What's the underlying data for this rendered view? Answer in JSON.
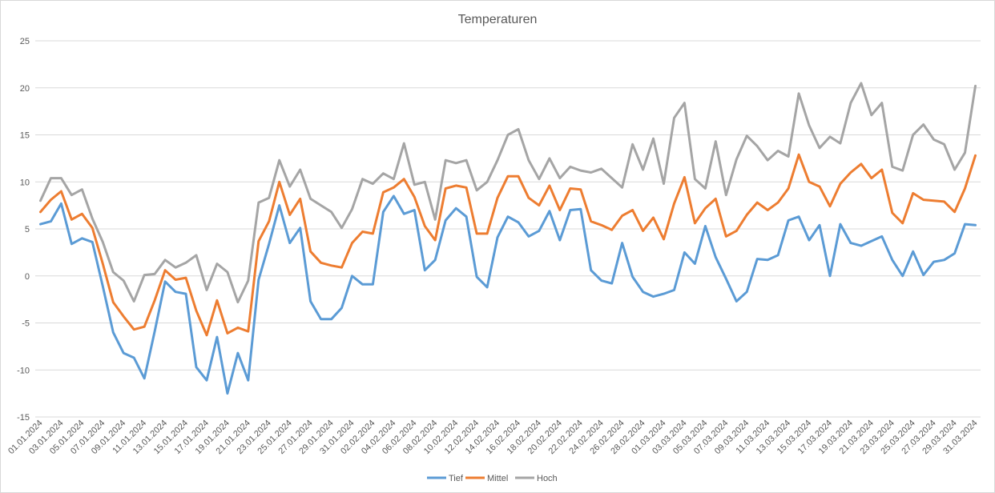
{
  "chart_data": {
    "type": "line",
    "title": "Temperaturen",
    "xlabel": "",
    "ylabel": "",
    "ylim": [
      -15,
      25
    ],
    "yticks": [
      -15,
      -10,
      -5,
      0,
      5,
      10,
      15,
      20,
      25
    ],
    "grid": true,
    "legend_position": "bottom",
    "x": [
      "01.01.2024",
      "02.01.2024",
      "03.01.2024",
      "04.01.2024",
      "05.01.2024",
      "06.01.2024",
      "07.01.2024",
      "08.01.2024",
      "09.01.2024",
      "10.01.2024",
      "11.01.2024",
      "12.01.2024",
      "13.01.2024",
      "14.01.2024",
      "15.01.2024",
      "16.01.2024",
      "17.01.2024",
      "18.01.2024",
      "19.01.2024",
      "20.01.2024",
      "21.01.2024",
      "22.01.2024",
      "23.01.2024",
      "24.01.2024",
      "25.01.2024",
      "26.01.2024",
      "27.01.2024",
      "28.01.2024",
      "29.01.2024",
      "30.01.2024",
      "31.01.2024",
      "01.02.2024",
      "02.02.2024",
      "03.02.2024",
      "04.02.2024",
      "05.02.2024",
      "06.02.2024",
      "07.02.2024",
      "08.02.2024",
      "09.02.2024",
      "10.02.2024",
      "11.02.2024",
      "12.02.2024",
      "13.02.2024",
      "14.02.2024",
      "15.02.2024",
      "16.02.2024",
      "17.02.2024",
      "18.02.2024",
      "19.02.2024",
      "20.02.2024",
      "21.02.2024",
      "22.02.2024",
      "23.02.2024",
      "24.02.2024",
      "25.02.2024",
      "26.02.2024",
      "27.02.2024",
      "28.02.2024",
      "29.02.2024",
      "01.03.2024",
      "02.03.2024",
      "03.03.2024",
      "04.03.2024",
      "05.03.2024",
      "06.03.2024",
      "07.03.2024",
      "08.03.2024",
      "09.03.2024",
      "10.03.2024",
      "11.03.2024",
      "12.03.2024",
      "13.03.2024",
      "14.03.2024",
      "15.03.2024",
      "16.03.2024",
      "17.03.2024",
      "18.03.2024",
      "19.03.2024",
      "20.03.2024",
      "21.03.2024",
      "22.03.2024",
      "23.03.2024",
      "24.03.2024",
      "25.03.2024",
      "26.03.2024",
      "27.03.2024",
      "28.03.2024",
      "29.03.2024",
      "30.03.2024",
      "31.03.2024"
    ],
    "x_tick_labels": [
      "01.01.2024",
      "03.01.2024",
      "05.01.2024",
      "07.01.2024",
      "09.01.2024",
      "11.01.2024",
      "13.01.2024",
      "15.01.2024",
      "17.01.2024",
      "19.01.2024",
      "21.01.2024",
      "23.01.2024",
      "25.01.2024",
      "27.01.2024",
      "29.01.2024",
      "31.01.2024",
      "02.02.2024",
      "04.02.2024",
      "06.02.2024",
      "08.02.2024",
      "10.02.2024",
      "12.02.2024",
      "14.02.2024",
      "16.02.2024",
      "18.02.2024",
      "20.02.2024",
      "22.02.2024",
      "24.02.2024",
      "26.02.2024",
      "28.02.2024",
      "01.03.2024",
      "03.03.2024",
      "05.03.2024",
      "07.03.2024",
      "09.03.2024",
      "11.03.2024",
      "13.03.2024",
      "15.03.2024",
      "17.03.2024",
      "19.03.2024",
      "21.03.2024",
      "23.03.2024",
      "25.03.2024",
      "27.03.2024",
      "29.03.2024",
      "31.03.2024"
    ],
    "series": [
      {
        "name": "Tief",
        "color": "#5b9bd5",
        "values": [
          5.5,
          5.8,
          7.7,
          3.4,
          4.0,
          3.6,
          -1.1,
          -6.0,
          -8.2,
          -8.7,
          -10.9,
          -5.9,
          -0.6,
          -1.7,
          -1.9,
          -9.7,
          -11.1,
          -6.5,
          -12.5,
          -8.2,
          -11.1,
          -0.4,
          3.4,
          7.5,
          3.5,
          5.1,
          -2.7,
          -4.6,
          -4.6,
          -3.4,
          0.0,
          -0.9,
          -0.9,
          6.8,
          8.5,
          6.6,
          7.0,
          0.6,
          1.7,
          5.9,
          7.2,
          6.3,
          -0.1,
          -1.2,
          4.1,
          6.3,
          5.7,
          4.2,
          4.8,
          6.9,
          3.8,
          7.0,
          7.1,
          0.6,
          -0.5,
          -0.8,
          3.5,
          -0.1,
          -1.7,
          -2.2,
          -1.9,
          -1.5,
          2.5,
          1.3,
          5.3,
          2.0,
          -0.3,
          -2.7,
          -1.7,
          1.8,
          1.7,
          2.2,
          5.9,
          6.3,
          3.8,
          5.4,
          0.0,
          5.5,
          3.5,
          3.2,
          3.7,
          4.2,
          1.7,
          0.0,
          2.6,
          0.1,
          1.5,
          1.7,
          2.4,
          5.5,
          5.4
        ]
      },
      {
        "name": "Mittel",
        "color": "#ed7d31",
        "values": [
          6.8,
          8.1,
          9.0,
          6.0,
          6.6,
          5.1,
          1.3,
          -2.8,
          -4.3,
          -5.7,
          -5.4,
          -2.6,
          0.6,
          -0.4,
          -0.2,
          -3.7,
          -6.3,
          -2.6,
          -6.1,
          -5.5,
          -5.9,
          3.7,
          5.8,
          10.0,
          6.5,
          8.2,
          2.6,
          1.4,
          1.1,
          0.9,
          3.5,
          4.7,
          4.5,
          8.9,
          9.4,
          10.3,
          8.4,
          5.3,
          3.8,
          9.3,
          9.6,
          9.4,
          4.5,
          4.5,
          8.3,
          10.6,
          10.6,
          8.3,
          7.5,
          9.6,
          7.0,
          9.3,
          9.2,
          5.8,
          5.4,
          4.9,
          6.4,
          7.0,
          4.8,
          6.2,
          3.9,
          7.7,
          10.5,
          5.6,
          7.2,
          8.2,
          4.2,
          4.8,
          6.5,
          7.8,
          7.0,
          7.8,
          9.3,
          12.9,
          10.0,
          9.5,
          7.4,
          9.8,
          11.0,
          11.9,
          10.4,
          11.3,
          6.7,
          5.6,
          8.8,
          8.1,
          8.0,
          7.9,
          6.8,
          9.3,
          12.8
        ]
      },
      {
        "name": "Hoch",
        "color": "#a5a5a5",
        "values": [
          8.0,
          10.4,
          10.4,
          8.6,
          9.2,
          6.1,
          3.6,
          0.4,
          -0.5,
          -2.7,
          0.1,
          0.2,
          1.7,
          0.9,
          1.4,
          2.2,
          -1.5,
          1.3,
          0.4,
          -2.8,
          -0.5,
          7.8,
          8.3,
          12.3,
          9.5,
          11.3,
          8.2,
          7.5,
          6.8,
          5.1,
          7.1,
          10.3,
          9.8,
          10.9,
          10.3,
          14.1,
          9.7,
          10.0,
          6.0,
          12.3,
          12.0,
          12.3,
          9.1,
          10.0,
          12.3,
          15.0,
          15.6,
          12.3,
          10.3,
          12.5,
          10.4,
          11.6,
          11.2,
          11.0,
          11.4,
          10.4,
          9.4,
          14.0,
          11.3,
          14.6,
          9.8,
          16.8,
          18.4,
          10.3,
          9.3,
          14.3,
          8.6,
          12.4,
          14.9,
          13.8,
          12.3,
          13.3,
          12.7,
          19.4,
          16.0,
          13.6,
          14.8,
          14.1,
          18.4,
          20.5,
          17.1,
          18.4,
          11.6,
          11.2,
          15.0,
          16.1,
          14.5,
          14.0,
          11.3,
          13.1,
          20.2
        ]
      }
    ]
  }
}
